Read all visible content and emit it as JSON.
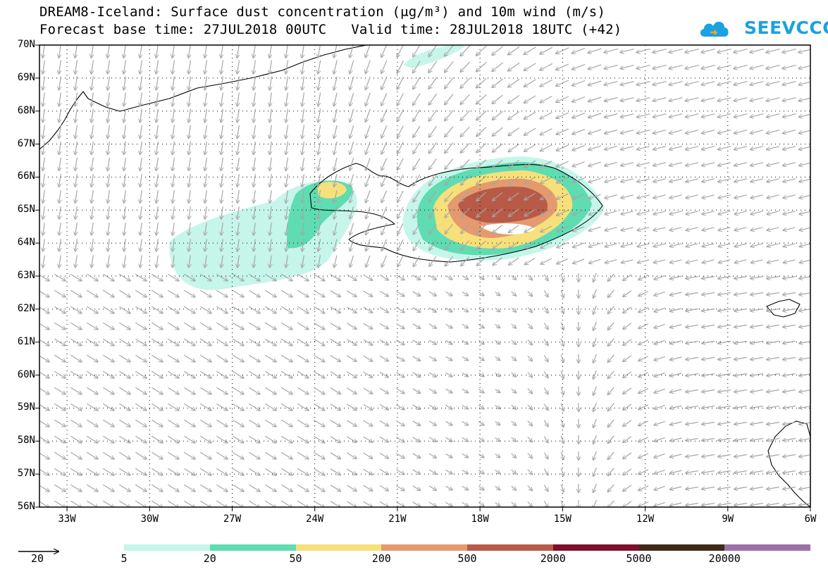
{
  "title": {
    "line1": "DREAM8-Iceland: Surface dust concentration (μg/m³) and 10m wind (m/s)",
    "line2": "Forecast base time: 27JUL2018 00UTC   Valid time: 28JUL2018 18UTC (+42)"
  },
  "logo": {
    "text": "SEEVCCC",
    "icon": "cloud-logo-icon",
    "color": "#1ba1e2"
  },
  "map": {
    "projection": "lat-lon",
    "lon_range": [
      -34,
      -6
    ],
    "lat_range": [
      56,
      70
    ],
    "lat_labels": [
      "70N",
      "69N",
      "68N",
      "67N",
      "66N",
      "65N",
      "64N",
      "63N",
      "62N",
      "61N",
      "60N",
      "59N",
      "58N",
      "57N",
      "56N"
    ],
    "lon_labels": [
      "33W",
      "30W",
      "27W",
      "24W",
      "21W",
      "18W",
      "15W",
      "12W",
      "9W",
      "6W"
    ],
    "gridlines": true,
    "wind_vector_color": "#a6a6a6",
    "coastline_color": "#000000"
  },
  "legend": {
    "colors": [
      "#c6f5ea",
      "#5fdcb2",
      "#f7e07a",
      "#e49a6e",
      "#b85a48",
      "#7e0f2c",
      "#3f2a17",
      "#9b71a8"
    ],
    "labels": [
      "5",
      "20",
      "50",
      "200",
      "500",
      "2000",
      "5000",
      "20000"
    ],
    "units": "μg/m³"
  },
  "wind_reference": {
    "value": "20",
    "units": "m/s"
  }
}
